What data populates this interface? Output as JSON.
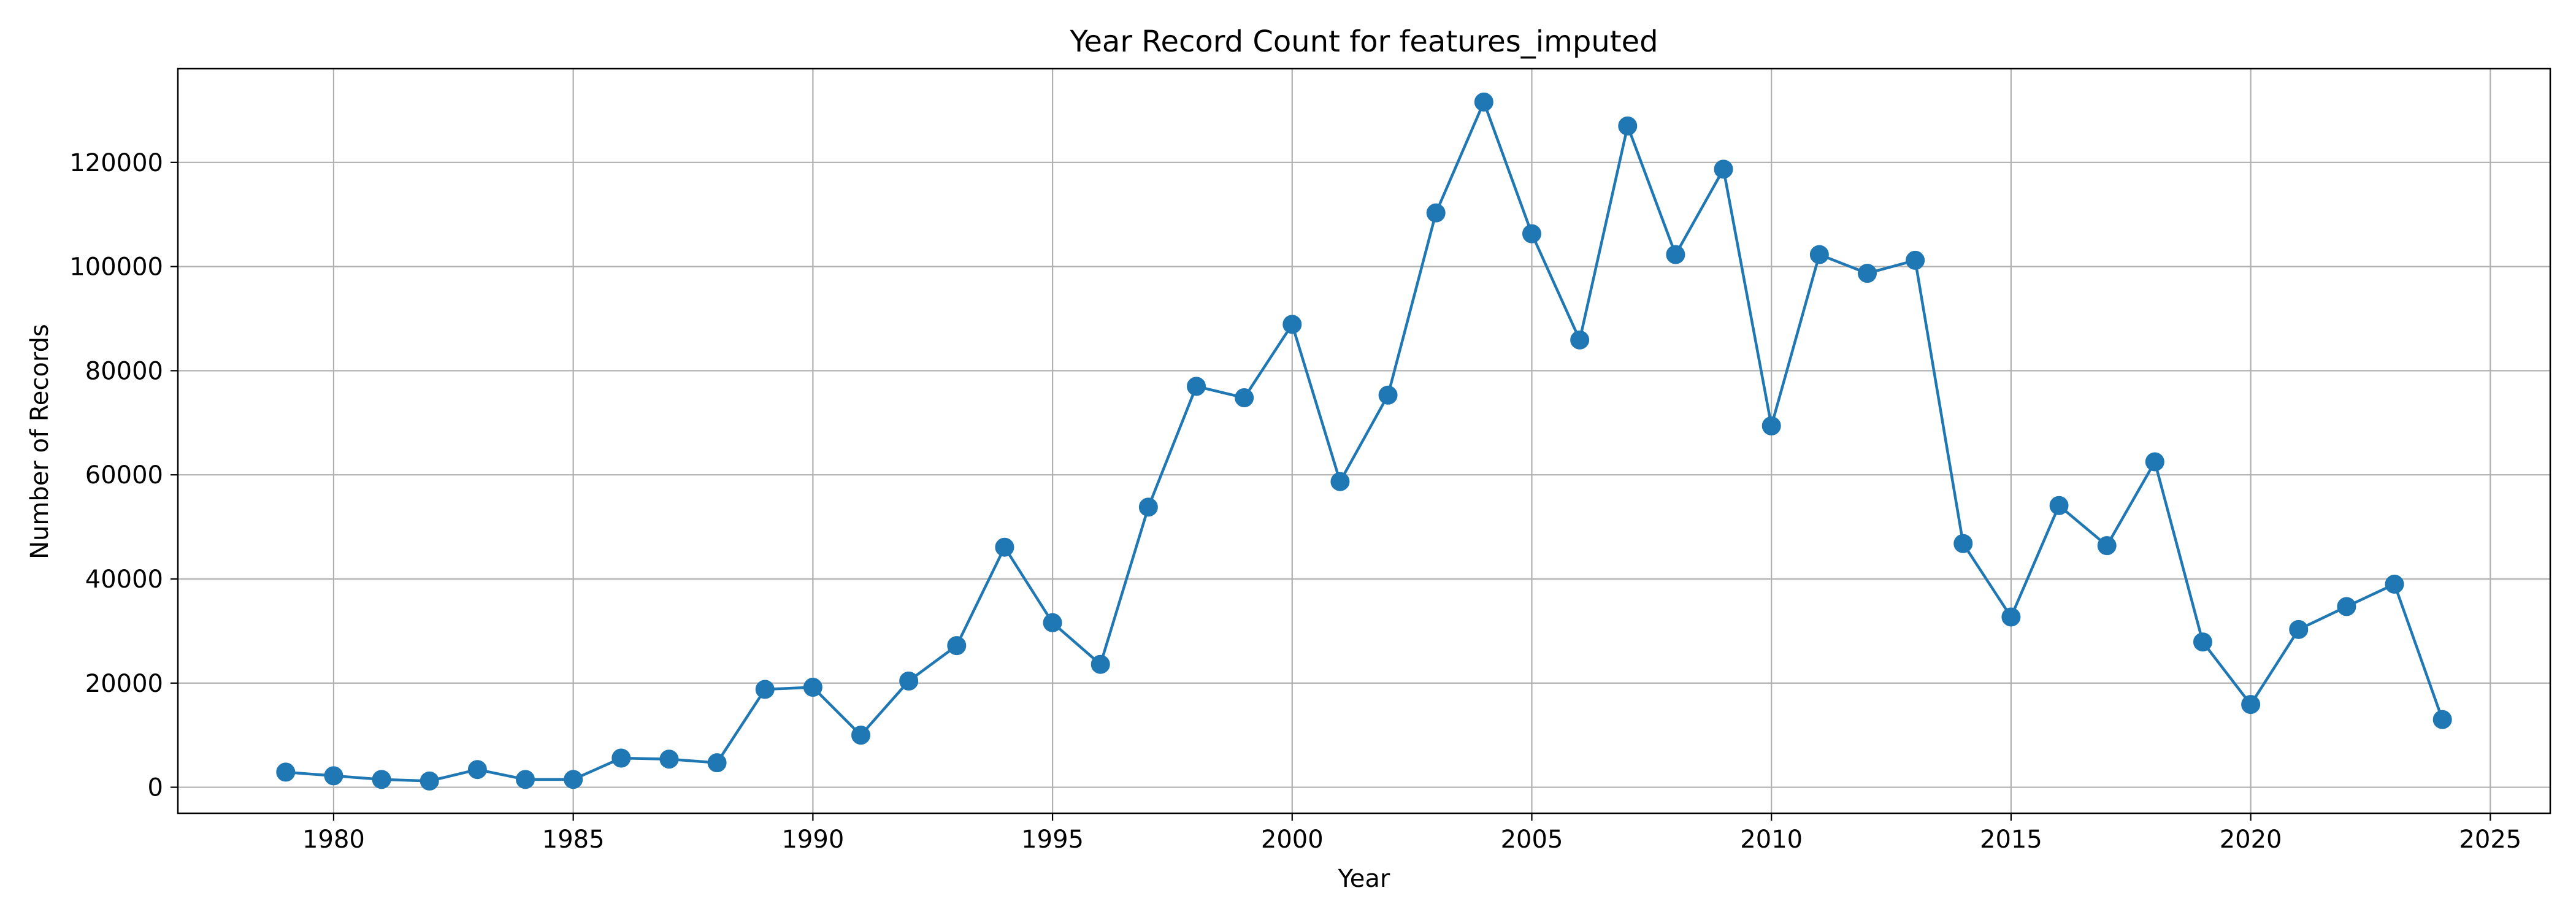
{
  "chart_data": {
    "type": "line",
    "title": "Year Record Count for features_imputed",
    "xlabel": "Year",
    "ylabel": "Number of Records",
    "x": [
      1979,
      1980,
      1981,
      1982,
      1983,
      1984,
      1985,
      1986,
      1987,
      1988,
      1989,
      1990,
      1991,
      1992,
      1993,
      1994,
      1995,
      1996,
      1997,
      1998,
      1999,
      2000,
      2001,
      2002,
      2003,
      2004,
      2005,
      2006,
      2007,
      2008,
      2009,
      2010,
      2011,
      2012,
      2013,
      2014,
      2015,
      2016,
      2017,
      2018,
      2019,
      2020,
      2021,
      2022,
      2023,
      2024
    ],
    "y": [
      2900,
      2200,
      1500,
      1200,
      3400,
      1500,
      1500,
      5600,
      5400,
      4700,
      18800,
      19200,
      10000,
      20400,
      27200,
      46100,
      31600,
      23600,
      53800,
      77000,
      74800,
      88900,
      58700,
      75300,
      110300,
      131600,
      106300,
      85900,
      127000,
      102300,
      118700,
      69400,
      102300,
      98700,
      101200,
      46800,
      32700,
      54100,
      46400,
      62500,
      27900,
      15900,
      30300,
      34700,
      39000,
      13000
    ],
    "xlim": [
      1976.75,
      2026.25
    ],
    "ylim": [
      -5000,
      138000
    ],
    "x_ticks": [
      "1980",
      "1985",
      "1990",
      "1995",
      "2000",
      "2005",
      "2010",
      "2015",
      "2020",
      "2025"
    ],
    "y_ticks": [
      "0",
      "20000",
      "40000",
      "60000",
      "80000",
      "100000",
      "120000"
    ],
    "grid": true,
    "marker": "circle",
    "color": "#1f77b4"
  }
}
